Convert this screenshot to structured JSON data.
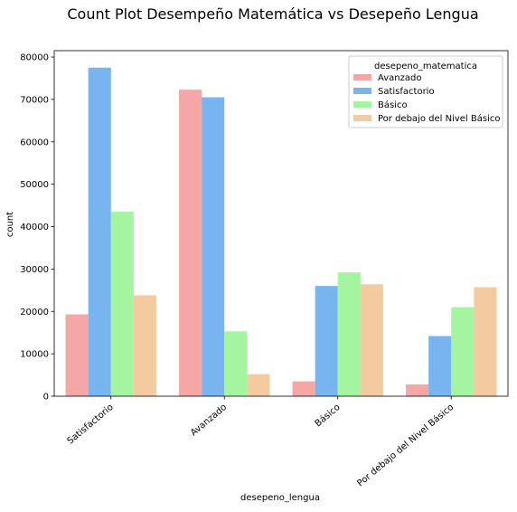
{
  "chart_data": {
    "type": "bar",
    "title": "Count Plot Desempeño Matemática vs Desepeño Lengua",
    "xlabel": "desepeno_lengua",
    "ylabel": "count",
    "categories": [
      "Satisfactorio",
      "Avanzado",
      "Básico",
      "Por debajo del Nivel Básico"
    ],
    "ylim": [
      0,
      81500
    ],
    "yticks": [
      0,
      10000,
      20000,
      30000,
      40000,
      50000,
      60000,
      70000,
      80000
    ],
    "ytick_labels": [
      "0",
      "10000",
      "20000",
      "30000",
      "40000",
      "50000",
      "60000",
      "70000",
      "80000"
    ],
    "grid": false,
    "legend": {
      "title": "desepeno_matematica",
      "position": "top-right"
    },
    "series": [
      {
        "name": "Avanzado",
        "color": "#f4a7a5",
        "values": [
          19300,
          72300,
          3500,
          2800
        ]
      },
      {
        "name": "Satisfactorio",
        "color": "#78b4f0",
        "values": [
          77500,
          70500,
          26000,
          14200
        ]
      },
      {
        "name": "Básico",
        "color": "#a4f4a0",
        "values": [
          43500,
          15300,
          29200,
          21000
        ]
      },
      {
        "name": "Por debajo del Nivel Básico",
        "color": "#f4cba1",
        "values": [
          23800,
          5200,
          26400,
          25700
        ]
      }
    ]
  }
}
